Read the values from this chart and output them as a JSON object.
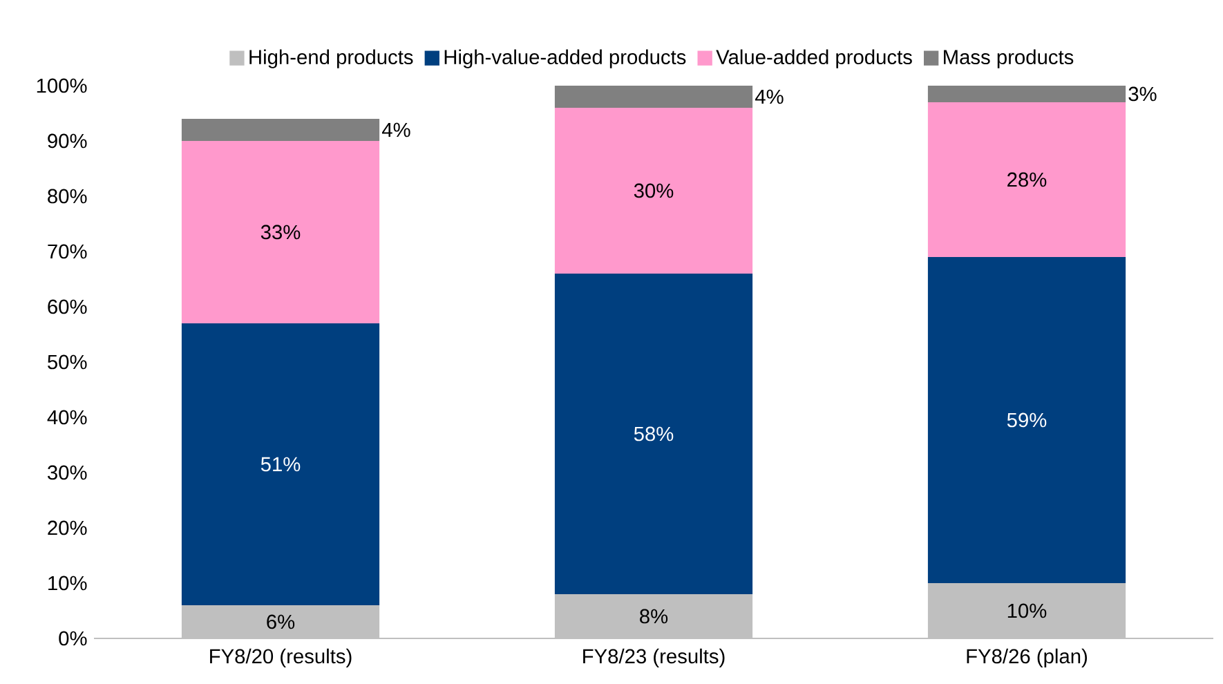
{
  "chart_data": {
    "type": "bar",
    "stacked": true,
    "categories": [
      "FY8/20 (results)",
      "FY8/23 (results)",
      "FY8/26 (plan)"
    ],
    "series": [
      {
        "name": "High-end products",
        "color": "#bfbfbf",
        "values": [
          6,
          8,
          10
        ],
        "value_labels": [
          "6%",
          "8%",
          "10%"
        ]
      },
      {
        "name": "High-value-added products",
        "color": "#003f7f",
        "values": [
          51,
          58,
          59
        ],
        "value_labels": [
          "51%",
          "58%",
          "59%"
        ]
      },
      {
        "name": "Value-added products",
        "color": "#ff99cc",
        "values": [
          33,
          30,
          28
        ],
        "value_labels": [
          "33%",
          "30%",
          "28%"
        ]
      },
      {
        "name": "Mass products",
        "color": "#808080",
        "values": [
          4,
          4,
          3
        ],
        "value_labels": [
          "4%",
          "4%",
          "3%"
        ]
      }
    ],
    "ylim": [
      0,
      100
    ],
    "yticks": [
      {
        "value": 0,
        "label": "0%"
      },
      {
        "value": 10,
        "label": "10%"
      },
      {
        "value": 20,
        "label": "20%"
      },
      {
        "value": 30,
        "label": "30%"
      },
      {
        "value": 40,
        "label": "40%"
      },
      {
        "value": 50,
        "label": "50%"
      },
      {
        "value": 60,
        "label": "60%"
      },
      {
        "value": 70,
        "label": "70%"
      },
      {
        "value": 80,
        "label": "80%"
      },
      {
        "value": 90,
        "label": "90%"
      },
      {
        "value": 100,
        "label": "100%"
      }
    ],
    "legend": "top",
    "grid": false
  }
}
